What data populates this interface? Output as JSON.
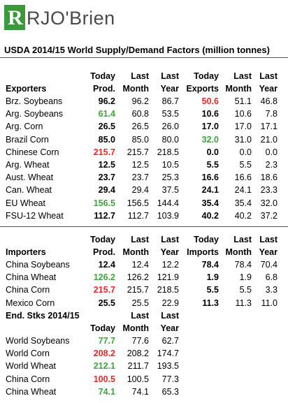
{
  "brand": {
    "name": "RJO'Brien"
  },
  "title": "USDA 2014/15 World Supply/Demand Factors (million tonnes)",
  "exporters": {
    "section_label": "Exporters",
    "header_top": [
      "Today",
      "Last",
      "Last",
      "Today",
      "Last",
      "Last"
    ],
    "header_bottom": [
      "Prod.",
      "Month",
      "Year",
      "Exports",
      "Month",
      "Year"
    ],
    "rows": [
      {
        "label": "Brz. Soybeans",
        "v": [
          "96.2",
          "96.2",
          "86.7",
          "50.6",
          "51.1",
          "46.8"
        ],
        "prod_color": "",
        "exp_color": "red"
      },
      {
        "label": "Arg. Soybeans",
        "v": [
          "61.4",
          "60.8",
          "53.5",
          "10.6",
          "10.6",
          "7.8"
        ],
        "prod_color": "green",
        "exp_color": ""
      },
      {
        "label": "Arg. Corn",
        "v": [
          "26.5",
          "26.5",
          "26.0",
          "17.0",
          "17.0",
          "17.1"
        ],
        "prod_color": "",
        "exp_color": ""
      },
      {
        "label": "Brazil Corn",
        "v": [
          "85.0",
          "85.0",
          "80.0",
          "32.0",
          "31.0",
          "21.0"
        ],
        "prod_color": "",
        "exp_color": "green"
      },
      {
        "label": "Chinese Corn",
        "v": [
          "215.7",
          "215.7",
          "218.5",
          "0.0",
          "0.0",
          "0.0"
        ],
        "prod_color": "red",
        "exp_color": ""
      },
      {
        "label": "Arg. Wheat",
        "v": [
          "12.5",
          "12.5",
          "10.5",
          "5.5",
          "5.5",
          "2.3"
        ],
        "prod_color": "",
        "exp_color": ""
      },
      {
        "label": "Aust. Wheat",
        "v": [
          "23.7",
          "23.7",
          "25.3",
          "16.6",
          "16.6",
          "18.6"
        ],
        "prod_color": "",
        "exp_color": ""
      },
      {
        "label": "Can. Wheat",
        "v": [
          "29.4",
          "29.4",
          "37.5",
          "24.1",
          "24.1",
          "23.3"
        ],
        "prod_color": "",
        "exp_color": ""
      },
      {
        "label": "EU Wheat",
        "v": [
          "156.5",
          "156.5",
          "144.4",
          "35.4",
          "35.4",
          "32.0"
        ],
        "prod_color": "green",
        "exp_color": ""
      },
      {
        "label": "FSU-12 Wheat",
        "v": [
          "112.7",
          "112.7",
          "103.9",
          "40.2",
          "40.2",
          "37.2"
        ],
        "prod_color": "",
        "exp_color": ""
      }
    ]
  },
  "importers": {
    "section_label": "Importers",
    "header_top": [
      "Today",
      "Last",
      "Last",
      "Today",
      "Last",
      "Last"
    ],
    "header_bottom": [
      "Prod.",
      "Month",
      "Year",
      "Imports",
      "Month",
      "Year"
    ],
    "rows": [
      {
        "label": "China Soybeans",
        "v": [
          "12.4",
          "12.4",
          "12.2",
          "78.4",
          "78.4",
          "70.4"
        ],
        "prod_color": ""
      },
      {
        "label": "China Wheat",
        "v": [
          "126.2",
          "126.2",
          "121.9",
          "1.9",
          "1.9",
          "6.8"
        ],
        "prod_color": "green"
      },
      {
        "label": "China Corn",
        "v": [
          "215.7",
          "215.7",
          "218.5",
          "5.5",
          "5.5",
          "3.3"
        ],
        "prod_color": "red"
      },
      {
        "label": "Mexico Corn",
        "v": [
          "25.5",
          "25.5",
          "22.9",
          "11.3",
          "11.3",
          "11.0"
        ],
        "prod_color": ""
      }
    ]
  },
  "end_stocks": {
    "section_label": "End. Stks 2014/15",
    "header_top": [
      "Last",
      "Last"
    ],
    "header_bottom": [
      "Today",
      "Month",
      "Year"
    ],
    "rows": [
      {
        "label": "World Soybeans",
        "v": [
          "77.7",
          "77.6",
          "62.7"
        ],
        "color": "green"
      },
      {
        "label": "World Corn",
        "v": [
          "208.2",
          "208.2",
          "174.7"
        ],
        "color": "red"
      },
      {
        "label": "World Wheat",
        "v": [
          "212.1",
          "211.7",
          "193.5"
        ],
        "color": "green"
      },
      {
        "label": "China Corn",
        "v": [
          "100.5",
          "100.5",
          "77.3"
        ],
        "color": "red"
      },
      {
        "label": "China Wheat",
        "v": [
          "74.1",
          "74.1",
          "65.3"
        ],
        "color": "green"
      }
    ]
  },
  "colors": {
    "red": "#e8282a",
    "green": "#3ea33c",
    "logo_green": "#3a9a3a"
  }
}
